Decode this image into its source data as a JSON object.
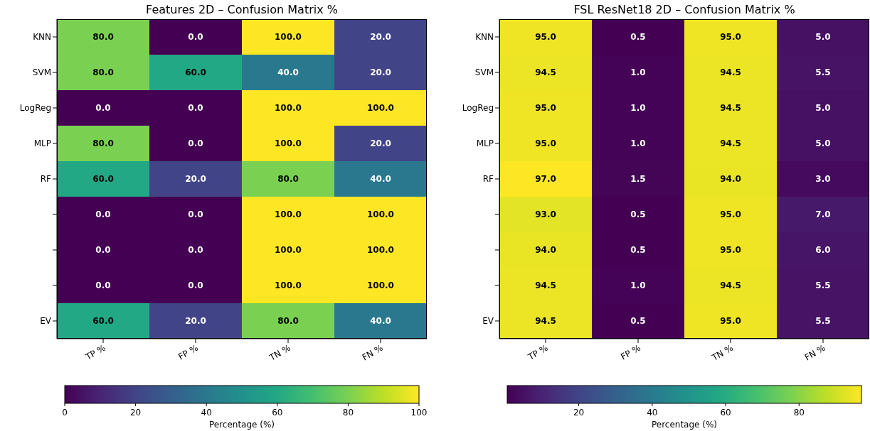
{
  "chart_data": [
    {
      "type": "heatmap",
      "title": "Features 2D – Confusion Matrix %",
      "categories": [
        "TP %",
        "FP %",
        "TN %",
        "FN %"
      ],
      "y_categories": [
        "KNN",
        "SVM",
        "LogReg",
        "MLP",
        "RF",
        null,
        null,
        null,
        "EV"
      ],
      "cells": [
        [
          80.0,
          0.0,
          100.0,
          20.0
        ],
        [
          80.0,
          60.0,
          40.0,
          20.0
        ],
        [
          0.0,
          0.0,
          100.0,
          100.0
        ],
        [
          80.0,
          0.0,
          100.0,
          20.0
        ],
        [
          60.0,
          20.0,
          80.0,
          40.0
        ],
        [
          0.0,
          0.0,
          100.0,
          100.0
        ],
        [
          0.0,
          0.0,
          100.0,
          100.0
        ],
        [
          0.0,
          0.0,
          100.0,
          100.0
        ],
        [
          60.0,
          20.0,
          80.0,
          40.0
        ]
      ],
      "cell_labels": [
        [
          "80.0",
          "0.0",
          "100.0",
          "20.0"
        ],
        [
          "80.0",
          "60.0",
          "40.0",
          "20.0"
        ],
        [
          "0.0",
          "0.0",
          "100.0",
          "100.0"
        ],
        [
          "80.0",
          "0.0",
          "100.0",
          "20.0"
        ],
        [
          "60.0",
          "20.0",
          "80.0",
          "40.0"
        ],
        [
          "0.0",
          "0.0",
          "100.0",
          "100.0"
        ],
        [
          "0.0",
          "0.0",
          "100.0",
          "100.0"
        ],
        [
          "0.0",
          "0.0",
          "100.0",
          "100.0"
        ],
        [
          "60.0",
          "20.0",
          "80.0",
          "40.0"
        ]
      ],
      "clim": [
        0,
        100
      ],
      "cticks": [
        0,
        20,
        40,
        60,
        80,
        100
      ],
      "clabel": "Percentage (%)"
    },
    {
      "type": "heatmap",
      "title": "FSL ResNet18 2D – Confusion Matrix %",
      "categories": [
        "TP %",
        "FP %",
        "TN %",
        "FN %"
      ],
      "y_categories": [
        "KNN",
        "SVM",
        "LogReg",
        "MLP",
        "RF",
        null,
        null,
        null,
        "EV"
      ],
      "cells": [
        [
          95.0,
          0.5,
          95.0,
          5.0
        ],
        [
          94.5,
          1.0,
          94.5,
          5.5
        ],
        [
          95.0,
          1.0,
          94.5,
          5.0
        ],
        [
          95.0,
          1.0,
          94.5,
          5.0
        ],
        [
          97.0,
          1.5,
          94.0,
          3.0
        ],
        [
          93.0,
          0.5,
          95.0,
          7.0
        ],
        [
          94.0,
          0.5,
          95.0,
          6.0
        ],
        [
          94.5,
          1.0,
          94.5,
          5.5
        ],
        [
          94.5,
          0.5,
          95.0,
          5.5
        ]
      ],
      "cell_labels": [
        [
          "95.0",
          "0.5",
          "95.0",
          "5.0"
        ],
        [
          "94.5",
          "1.0",
          "94.5",
          "5.5"
        ],
        [
          "95.0",
          "1.0",
          "94.5",
          "5.0"
        ],
        [
          "95.0",
          "1.0",
          "94.5",
          "5.0"
        ],
        [
          "97.0",
          "1.5",
          "94.0",
          "3.0"
        ],
        [
          "93.0",
          "0.5",
          "95.0",
          "7.0"
        ],
        [
          "94.0",
          "0.5",
          "95.0",
          "6.0"
        ],
        [
          "94.5",
          "1.0",
          "94.5",
          "5.5"
        ],
        [
          "94.5",
          "0.5",
          "95.0",
          "5.5"
        ]
      ],
      "clim": [
        0.5,
        97.0
      ],
      "cticks": [
        20,
        40,
        60,
        80
      ],
      "clabel": "Percentage (%)"
    }
  ]
}
